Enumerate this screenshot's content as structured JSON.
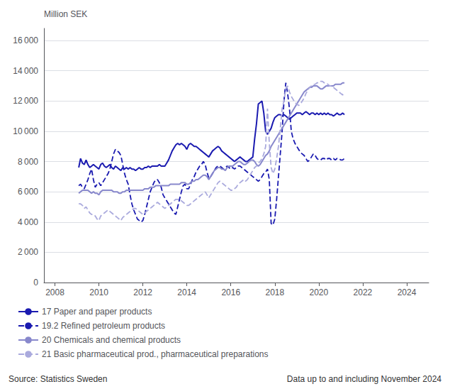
{
  "chart_data": {
    "type": "line",
    "ylabel": "Million SEK",
    "annotations": [
      "Source: Statistics Sweden",
      "Data up to and including November 2024"
    ],
    "grid": "y",
    "legend": "bottom left",
    "xlim": [
      2007.5,
      2025.0
    ],
    "xticks": [
      2008,
      2010,
      2012,
      2014,
      2016,
      2018,
      2020,
      2022,
      2024
    ],
    "ylim": [
      0,
      16800
    ],
    "yticks": [
      0,
      {
        "value": 2000,
        "label": "2 000"
      },
      {
        "value": 4000,
        "label": "4 000"
      },
      {
        "value": 6000,
        "label": "6 000"
      },
      {
        "value": 8000,
        "label": "8 000"
      },
      {
        "value": 10000,
        "label": "10 000"
      },
      {
        "value": 12000,
        "label": "12 000"
      },
      {
        "value": 14000,
        "label": "14 000"
      },
      {
        "value": 16000,
        "label": "16 000"
      }
    ],
    "x": [
      2009.083,
      2009.16633,
      2009.24966,
      2009.33299,
      2009.41632,
      2009.49965,
      2009.58298,
      2009.66631,
      2009.74964,
      2009.83297,
      2009.9163,
      2009.99963,
      2010.08296,
      2010.16629,
      2010.24962,
      2010.33295,
      2010.41628,
      2010.49961,
      2010.58294,
      2010.66627,
      2010.7496,
      2010.83293,
      2010.91626,
      2010.99959,
      2011.08292,
      2011.16625,
      2011.24958,
      2011.33291,
      2011.41624,
      2011.49957,
      2011.5829,
      2011.66623,
      2011.74956,
      2011.83289,
      2011.91622,
      2011.99955,
      2012.08288,
      2012.16621,
      2012.24954,
      2012.33287,
      2012.4162,
      2012.49953,
      2012.58286,
      2012.66619,
      2012.74952,
      2012.83285,
      2012.91618,
      2012.99951,
      2013.08284,
      2013.16617,
      2013.2495,
      2013.33283,
      2013.41616,
      2013.49949,
      2013.58282,
      2013.66615,
      2013.74948,
      2013.83281,
      2013.91614,
      2013.99947,
      2014.0828,
      2014.16613,
      2014.24946,
      2014.33279,
      2014.41612,
      2014.49945,
      2014.58278,
      2014.66611,
      2014.74944,
      2014.83277,
      2014.9161,
      2014.99943,
      2015.08276,
      2015.16609,
      2015.24942,
      2015.33275,
      2015.41608,
      2015.49941,
      2015.58274,
      2015.66607,
      2015.7494,
      2015.83273,
      2015.91606,
      2015.99939,
      2016.08272,
      2016.16605,
      2016.24938,
      2016.33271,
      2016.41604,
      2016.49937,
      2016.5827,
      2016.66603,
      2016.74936,
      2016.83269,
      2016.91602,
      2016.99935,
      2017.08268,
      2017.16601,
      2017.24934,
      2017.33267,
      2017.416,
      2017.49933,
      2017.58266,
      2017.66599,
      2017.74932,
      2017.83265,
      2017.91598,
      2017.99931,
      2018.08264,
      2018.16597,
      2018.2493,
      2018.33263,
      2018.41596,
      2018.49929,
      2018.58262,
      2018.66595,
      2018.74928,
      2018.83261,
      2018.91594,
      2018.99927,
      2019.0826,
      2019.16593,
      2019.24926,
      2019.33259,
      2019.41592,
      2019.49925,
      2019.58258,
      2019.66591,
      2019.74924,
      2019.83257,
      2019.9159,
      2019.99923,
      2020.08256,
      2020.16589,
      2020.24922,
      2020.33255,
      2020.41588,
      2020.49921,
      2020.58254,
      2020.66587,
      2020.7492,
      2020.83253,
      2020.91586,
      2020.99919,
      2021.08252,
      2021.16585
    ],
    "series": [
      {
        "name": "17 Paper and paper products",
        "color": "#1a1ab0",
        "line_style": "solid",
        "values": [
          7600,
          8200,
          7900,
          7800,
          8100,
          7800,
          7600,
          7700,
          7800,
          7700,
          7600,
          7500,
          7800,
          7900,
          7700,
          7600,
          7700,
          7800,
          7600,
          7500,
          7700,
          7600,
          7500,
          7400,
          7600,
          7500,
          7600,
          7500,
          7600,
          7500,
          7500,
          7400,
          7500,
          7600,
          7500,
          7500,
          7600,
          7600,
          7700,
          7600,
          7700,
          7700,
          7700,
          7700,
          7800,
          7700,
          7700,
          7700,
          7900,
          8100,
          8400,
          8700,
          8900,
          9100,
          9200,
          9100,
          9200,
          9100,
          9000,
          8800,
          9100,
          9200,
          9100,
          9000,
          9000,
          8900,
          8800,
          8700,
          8600,
          8500,
          8400,
          8300,
          8500,
          8700,
          8800,
          8900,
          9000,
          8900,
          8700,
          8600,
          8500,
          8400,
          8300,
          8200,
          8100,
          8000,
          8100,
          8200,
          8300,
          8200,
          8100,
          8000,
          8000,
          8100,
          8200,
          8300,
          9500,
          10500,
          11800,
          11900,
          12000,
          11200,
          10000,
          9800,
          10000,
          10200,
          10600,
          10900,
          11000,
          11100,
          11100,
          11000,
          11100,
          11000,
          10900,
          10800,
          10900,
          11000,
          11100,
          11200,
          11200,
          11200,
          11100,
          11200,
          11300,
          11200,
          11100,
          11200,
          11200,
          11100,
          11200,
          11100,
          11200,
          11100,
          11200,
          11100,
          11200,
          11100,
          11100,
          11000,
          11100,
          11200,
          11100,
          11100,
          11200,
          11100
        ]
      },
      {
        "name": "19.2 Refined petroleum products",
        "color": "#1a1ab0",
        "line_style": "dashed",
        "values": [
          6400,
          6500,
          6300,
          6200,
          6500,
          6800,
          7200,
          7500,
          6800,
          6300,
          6500,
          6600,
          6400,
          6600,
          6800,
          7000,
          7200,
          7500,
          8000,
          8500,
          8800,
          8700,
          8600,
          8400,
          7800,
          7200,
          6800,
          6500,
          5800,
          5200,
          4800,
          4500,
          4200,
          4100,
          4000,
          4100,
          4500,
          5000,
          5500,
          6000,
          6300,
          6600,
          6800,
          6800,
          6600,
          6300,
          5800,
          5600,
          5400,
          5200,
          5000,
          4800,
          4600,
          4500,
          5000,
          5500,
          6000,
          6400,
          6500,
          6200,
          6200,
          6500,
          6800,
          7000,
          7300,
          7500,
          7700,
          7800,
          8000,
          7800,
          7300,
          6900,
          7000,
          7200,
          7400,
          7600,
          7700,
          7700,
          7600,
          7500,
          7600,
          7700,
          7600,
          7500,
          7600,
          7500,
          7600,
          7700,
          7700,
          7600,
          7500,
          7400,
          7300,
          7200,
          7100,
          7000,
          6900,
          6800,
          6700,
          6800,
          7000,
          7200,
          7300,
          7500,
          6800,
          3900,
          3800,
          4200,
          5500,
          7000,
          8500,
          10000,
          12000,
          13200,
          12500,
          11500,
          10000,
          9500,
          9200,
          9000,
          8800,
          8600,
          8500,
          8400,
          8200,
          8000,
          8100,
          8300,
          8500,
          8400,
          8200,
          8100,
          8100,
          8200,
          8200,
          8100,
          8200,
          8200,
          8100,
          8200,
          8100,
          8200,
          8200,
          8100,
          8100,
          8200
        ]
      },
      {
        "name": "20 Chemicals and chemical products",
        "color": "#8888cc",
        "line_style": "solid",
        "values": [
          5900,
          6000,
          6100,
          6100,
          6100,
          6100,
          6000,
          5900,
          6000,
          5900,
          5900,
          5800,
          6000,
          6100,
          6100,
          6100,
          6100,
          6100,
          6100,
          6000,
          6000,
          6000,
          5900,
          5900,
          6000,
          6000,
          6100,
          6100,
          6100,
          6100,
          6100,
          6100,
          6100,
          6100,
          6100,
          6100,
          6200,
          6200,
          6200,
          6300,
          6300,
          6300,
          6400,
          6400,
          6400,
          6400,
          6400,
          6400,
          6400,
          6400,
          6500,
          6500,
          6500,
          6500,
          6500,
          6500,
          6600,
          6600,
          6600,
          6500,
          6500,
          6600,
          6700,
          6700,
          6800,
          6800,
          6900,
          7000,
          7100,
          7100,
          7000,
          6800,
          7000,
          7200,
          7400,
          7500,
          7600,
          7600,
          7500,
          7500,
          7400,
          7600,
          7700,
          7700,
          7700,
          7800,
          7900,
          8000,
          8000,
          7900,
          7800,
          7800,
          7900,
          8000,
          8100,
          8100,
          8000,
          7800,
          7700,
          7800,
          8000,
          8200,
          8400,
          8500,
          8700,
          9000,
          9200,
          9400,
          9600,
          9800,
          10000,
          10200,
          10400,
          10600,
          10800,
          11000,
          11200,
          11400,
          11600,
          11800,
          12000,
          12200,
          12400,
          12600,
          12700,
          12800,
          12900,
          12900,
          13000,
          13000,
          13000,
          12900,
          12800,
          12800,
          12900,
          13000,
          13000,
          13000,
          13000,
          13000,
          13100,
          13100,
          13100,
          13100,
          13200,
          13200
        ]
      },
      {
        "name": "21 Basic pharmaceutical prod., pharmaceutical preparations",
        "color": "#aaaadd",
        "line_style": "dashed",
        "values": [
          5200,
          5200,
          5100,
          4900,
          5000,
          4800,
          4600,
          4500,
          4500,
          4400,
          4200,
          4100,
          4400,
          4500,
          4600,
          4700,
          4800,
          4700,
          4600,
          4500,
          4400,
          4300,
          4200,
          4100,
          4300,
          4400,
          4500,
          4600,
          4700,
          4800,
          4900,
          4900,
          4800,
          4700,
          4600,
          4500,
          4600,
          4700,
          4800,
          4900,
          5000,
          5100,
          5200,
          5300,
          5200,
          5100,
          5000,
          4900,
          5000,
          5100,
          5200,
          5300,
          5400,
          5500,
          5500,
          5500,
          5400,
          5300,
          5200,
          5100,
          5100,
          5200,
          5300,
          5400,
          5500,
          5600,
          5700,
          5800,
          5900,
          6000,
          5800,
          5600,
          5800,
          6000,
          6200,
          6400,
          6600,
          6700,
          6600,
          6500,
          6400,
          6300,
          6200,
          6100,
          6100,
          6200,
          6300,
          6500,
          6600,
          6700,
          6800,
          6700,
          6800,
          7000,
          7200,
          7400,
          7600,
          7700,
          7900,
          8000,
          8200,
          8500,
          9000,
          11500,
          9200,
          7600,
          7200,
          7500,
          8200,
          9000,
          10200,
          11500,
          12000,
          12800,
          13000,
          12600,
          12300,
          12100,
          11900,
          11800,
          11700,
          11800,
          12000,
          12200,
          12500,
          12700,
          12900,
          13000,
          13100,
          13100,
          13200,
          13200,
          13300,
          13300,
          13200,
          13200,
          13100,
          13000,
          13000,
          12900,
          12800,
          12700,
          12600,
          12500,
          12400,
          12500
        ]
      }
    ]
  }
}
